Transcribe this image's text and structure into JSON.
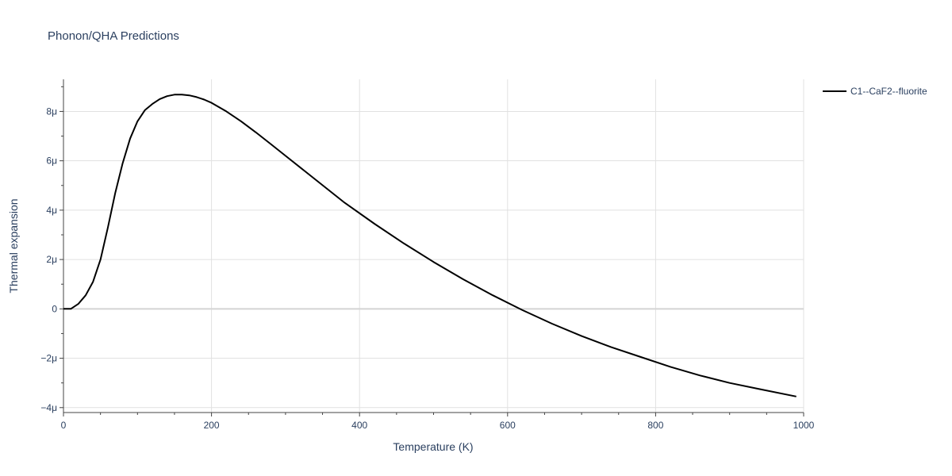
{
  "chart_data": {
    "type": "line",
    "title": "Phonon/QHA Predictions",
    "xlabel": "Temperature (K)",
    "ylabel": "Thermal expansion",
    "xlim": [
      0,
      1000
    ],
    "ylim": [
      -4.2e-06,
      9.3e-06
    ],
    "x_ticks": [
      0,
      200,
      400,
      600,
      800,
      1000
    ],
    "x_tick_labels": [
      "0",
      "200",
      "400",
      "600",
      "800",
      "1000"
    ],
    "y_ticks": [
      -4e-06,
      -2e-06,
      0,
      2e-06,
      4e-06,
      6e-06,
      8e-06
    ],
    "y_tick_labels": [
      "−4μ",
      "−2μ",
      "0",
      "2μ",
      "4μ",
      "6μ",
      "8μ"
    ],
    "grid": true,
    "legend_position": "top-right-outside",
    "series": [
      {
        "name": "C1--CaF2--fluorite",
        "color": "#000000",
        "x": [
          0,
          10,
          20,
          30,
          40,
          50,
          60,
          70,
          80,
          90,
          100,
          110,
          120,
          130,
          140,
          150,
          160,
          170,
          180,
          190,
          200,
          220,
          240,
          260,
          280,
          300,
          340,
          380,
          420,
          460,
          500,
          540,
          580,
          620,
          660,
          700,
          740,
          780,
          820,
          860,
          900,
          940,
          990
        ],
        "y": [
          0,
          0,
          2e-07,
          5.5e-07,
          1.1e-06,
          2e-06,
          3.3e-06,
          4.7e-06,
          5.9e-06,
          6.9e-06,
          7.6e-06,
          8.05e-06,
          8.3e-06,
          8.5e-06,
          8.62e-06,
          8.68e-06,
          8.68e-06,
          8.65e-06,
          8.58e-06,
          8.48e-06,
          8.35e-06,
          8e-06,
          7.6e-06,
          7.15e-06,
          6.68e-06,
          6.2e-06,
          5.25e-06,
          4.3e-06,
          3.45e-06,
          2.65e-06,
          1.9e-06,
          1.2e-06,
          5.5e-07,
          -5e-08,
          -6e-07,
          -1.1e-06,
          -1.55e-06,
          -1.95e-06,
          -2.35e-06,
          -2.7e-06,
          -3e-06,
          -3.25e-06,
          -3.55e-06
        ]
      }
    ]
  }
}
